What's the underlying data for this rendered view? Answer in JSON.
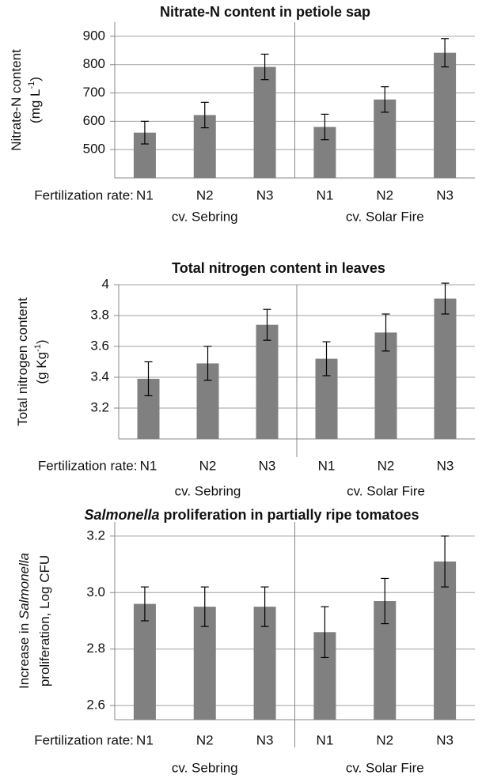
{
  "chart_data": [
    {
      "type": "bar",
      "title": [
        {
          "text": "Nitrate-N content in petiole sap"
        }
      ],
      "ylabel": [
        [
          {
            "text": "Nitrate-N content"
          }
        ],
        [
          {
            "text": "(mg L"
          },
          {
            "text": "-1",
            "sup": true
          },
          {
            "text": ")"
          }
        ]
      ],
      "x_label_prefix": "Fertilization rate:",
      "color": "#808080",
      "grid": true,
      "ylim": [
        400,
        950
      ],
      "yticks": [
        500,
        600,
        700,
        800,
        900
      ],
      "groups": [
        {
          "name": "cv. Sebring",
          "categories": [
            "N1",
            "N2",
            "N3"
          ],
          "values": [
            560,
            622,
            792
          ],
          "errors": [
            40,
            45,
            45
          ]
        },
        {
          "name": "cv. Solar Fire",
          "categories": [
            "N1",
            "N2",
            "N3"
          ],
          "values": [
            580,
            677,
            842
          ],
          "errors": [
            45,
            45,
            50
          ]
        }
      ]
    },
    {
      "type": "bar",
      "title": [
        {
          "text": "Total nitrogen content in leaves"
        }
      ],
      "ylabel": [
        [
          {
            "text": "Total nitrogen content"
          }
        ],
        [
          {
            "text": "(g Kg"
          },
          {
            "text": "-1",
            "sup": true
          },
          {
            "text": ")"
          }
        ]
      ],
      "x_label_prefix": "Fertilization rate:",
      "color": "#808080",
      "grid": true,
      "ylim": [
        3.0,
        4.0
      ],
      "yticks": [
        3.2,
        3.4,
        3.6,
        3.8,
        4
      ],
      "groups": [
        {
          "name": "cv. Sebring",
          "categories": [
            "N1",
            "N2",
            "N3"
          ],
          "values": [
            3.39,
            3.49,
            3.74
          ],
          "errors": [
            0.11,
            0.11,
            0.1
          ]
        },
        {
          "name": "cv. Solar Fire",
          "categories": [
            "N1",
            "N2",
            "N3"
          ],
          "values": [
            3.52,
            3.69,
            3.91
          ],
          "errors": [
            0.11,
            0.12,
            0.1
          ]
        }
      ]
    },
    {
      "type": "bar",
      "title": [
        {
          "text": "Salmonella",
          "italic": true
        },
        {
          "text": " proliferation in partially ripe tomatoes"
        }
      ],
      "ylabel": [
        [
          {
            "text": "Increase in "
          },
          {
            "text": "Salmonella",
            "italic": true
          }
        ],
        [
          {
            "text": "proliferation, Log CFU"
          }
        ]
      ],
      "x_label_prefix": "Fertilization rate:",
      "color": "#808080",
      "grid": true,
      "ylim": [
        2.55,
        3.25
      ],
      "yticks": [
        {
          "value": 2.6,
          "label": "2.6"
        },
        {
          "value": 2.8,
          "label": "2.8"
        },
        {
          "value": 3.0,
          "label": "3.0"
        },
        {
          "value": 3.2,
          "label": "3.2"
        }
      ],
      "groups": [
        {
          "name": "cv. Sebring",
          "categories": [
            "N1",
            "N2",
            "N3"
          ],
          "values": [
            2.96,
            2.95,
            2.95
          ],
          "errors": [
            0.06,
            0.07,
            0.07
          ]
        },
        {
          "name": "cv. Solar Fire",
          "categories": [
            "N1",
            "N2",
            "N3"
          ],
          "values": [
            2.86,
            2.97,
            3.11
          ],
          "errors": [
            0.09,
            0.08,
            0.09
          ]
        }
      ]
    }
  ]
}
